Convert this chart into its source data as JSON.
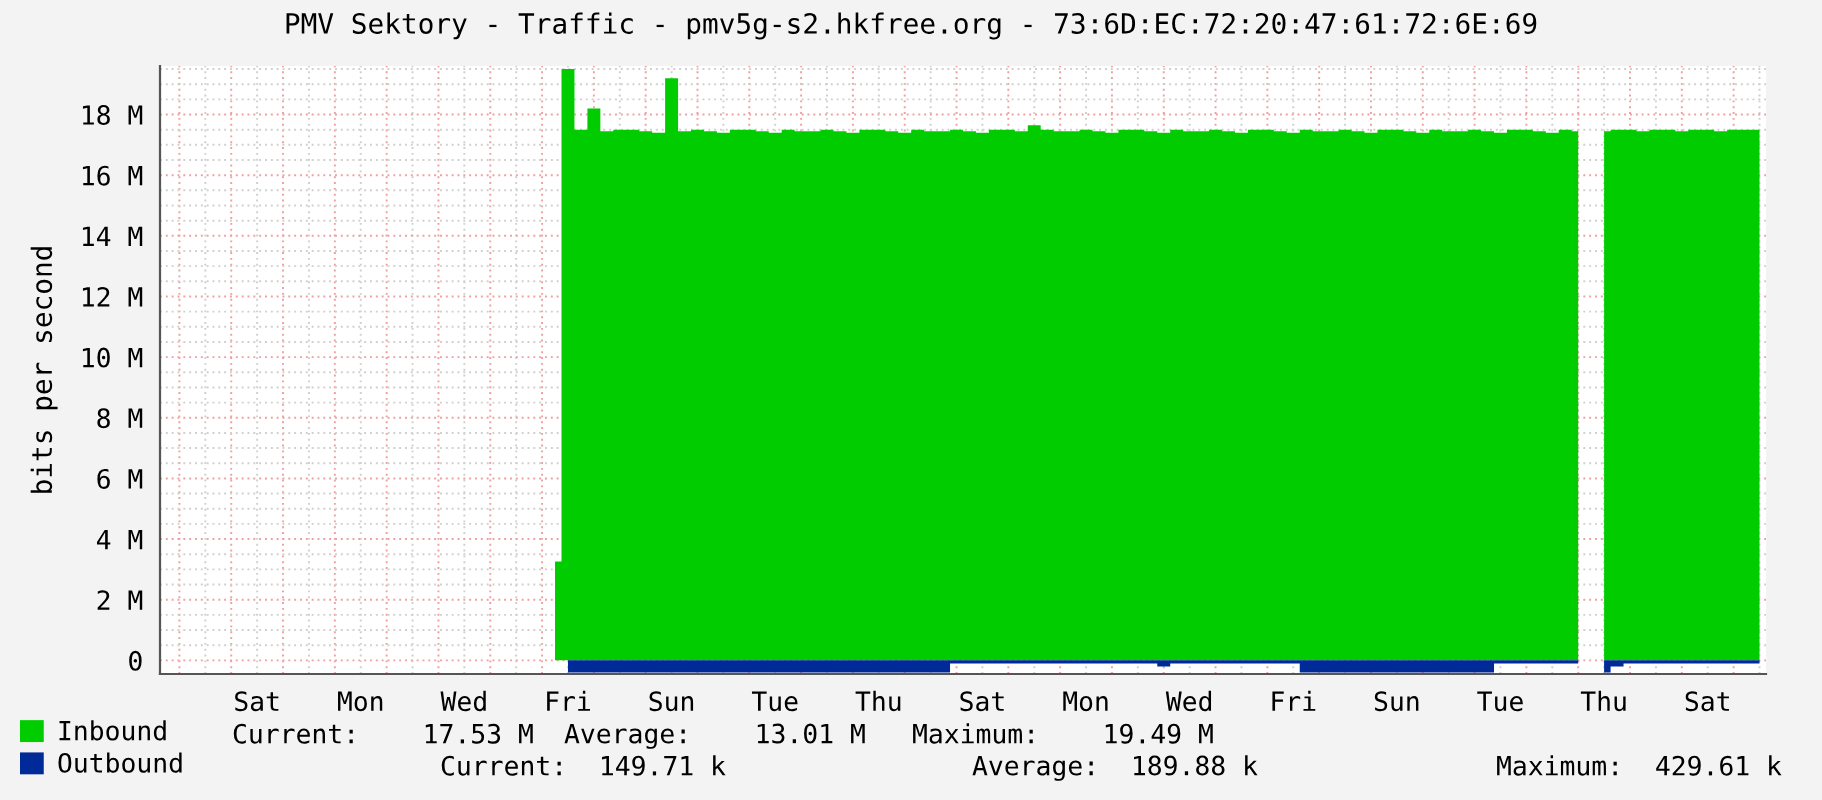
{
  "chart_data": {
    "type": "area",
    "title": "PMV Sektory - Traffic - pmv5g-s2.hkfree.org - 73:6D:EC:72:20:47:61:72:6E:69",
    "ylabel": "bits per second",
    "categories": [
      null,
      null,
      null,
      null,
      null,
      null,
      null,
      "Sat",
      null,
      null,
      null,
      null,
      null,
      null,
      null,
      "Mon",
      null,
      null,
      null,
      null,
      null,
      null,
      null,
      "Wed",
      null,
      null,
      null,
      null,
      null,
      null,
      null,
      "Fri",
      null,
      null,
      null,
      null,
      null,
      null,
      null,
      "Sun",
      null,
      null,
      null,
      null,
      null,
      null,
      null,
      "Tue",
      null,
      null,
      null,
      null,
      null,
      null,
      null,
      "Thu",
      null,
      null,
      null,
      null,
      null,
      null,
      null,
      "Sat",
      null,
      null,
      null,
      null,
      null,
      null,
      null,
      "Mon",
      null,
      null,
      null,
      null,
      null,
      null,
      null,
      "Wed",
      null,
      null,
      null,
      null,
      null,
      null,
      null,
      "Fri",
      null,
      null,
      null,
      null,
      null,
      null,
      null,
      "Sun",
      null,
      null,
      null,
      null,
      null,
      null,
      null,
      "Tue",
      null,
      null,
      null,
      null,
      null,
      null,
      null,
      "Thu",
      null,
      null,
      null,
      null,
      null,
      null,
      null,
      "Sat",
      null,
      null,
      null,
      null
    ],
    "ylim": [
      -0.45,
      19.6
    ],
    "yticks": [
      {
        "value": 0,
        "label": "0"
      },
      {
        "value": 0.5,
        "label": null
      },
      {
        "value": 1,
        "label": null
      },
      {
        "value": 1.5,
        "label": null
      },
      {
        "value": 2,
        "label": "2 M"
      },
      {
        "value": 2.5,
        "label": null
      },
      {
        "value": 3,
        "label": null
      },
      {
        "value": 3.5,
        "label": null
      },
      {
        "value": 4,
        "label": "4 M"
      },
      {
        "value": 4.5,
        "label": null
      },
      {
        "value": 5,
        "label": null
      },
      {
        "value": 5.5,
        "label": null
      },
      {
        "value": 6,
        "label": "6 M"
      },
      {
        "value": 6.5,
        "label": null
      },
      {
        "value": 7,
        "label": null
      },
      {
        "value": 7.5,
        "label": null
      },
      {
        "value": 8,
        "label": "8 M"
      },
      {
        "value": 8.5,
        "label": null
      },
      {
        "value": 9,
        "label": null
      },
      {
        "value": 9.5,
        "label": null
      },
      {
        "value": 10,
        "label": "10 M"
      },
      {
        "value": 10.5,
        "label": null
      },
      {
        "value": 11,
        "label": null
      },
      {
        "value": 11.5,
        "label": null
      },
      {
        "value": 12,
        "label": "12 M"
      },
      {
        "value": 12.5,
        "label": null
      },
      {
        "value": 13,
        "label": null
      },
      {
        "value": 13.5,
        "label": null
      },
      {
        "value": 14,
        "label": "14 M"
      },
      {
        "value": 14.5,
        "label": null
      },
      {
        "value": 15,
        "label": null
      },
      {
        "value": 15.5,
        "label": null
      },
      {
        "value": 16,
        "label": "16 M"
      },
      {
        "value": 16.5,
        "label": null
      },
      {
        "value": 17,
        "label": null
      },
      {
        "value": 17.5,
        "label": null
      },
      {
        "value": 18,
        "label": "18 M"
      },
      {
        "value": 18.5,
        "label": null
      },
      {
        "value": 19,
        "label": null
      },
      {
        "value": 19.5,
        "label": null
      }
    ],
    "grid": true,
    "legend": "bottom",
    "series": [
      {
        "name": "Inbound",
        "color": "#00cc00",
        "values": [
          null,
          null,
          null,
          null,
          null,
          null,
          null,
          null,
          null,
          null,
          null,
          null,
          null,
          null,
          null,
          null,
          null,
          null,
          null,
          null,
          null,
          null,
          null,
          null,
          null,
          null,
          null,
          null,
          null,
          null,
          3.26,
          19.5,
          17.5,
          18.2,
          17.45,
          17.5,
          17.5,
          17.45,
          17.4,
          19.2,
          17.45,
          17.5,
          17.45,
          17.4,
          17.5,
          17.5,
          17.45,
          17.4,
          17.5,
          17.45,
          17.45,
          17.5,
          17.45,
          17.4,
          17.5,
          17.5,
          17.45,
          17.4,
          17.5,
          17.45,
          17.45,
          17.5,
          17.45,
          17.4,
          17.5,
          17.5,
          17.45,
          17.65,
          17.5,
          17.45,
          17.45,
          17.5,
          17.45,
          17.4,
          17.5,
          17.5,
          17.45,
          17.4,
          17.5,
          17.45,
          17.45,
          17.5,
          17.45,
          17.4,
          17.5,
          17.5,
          17.45,
          17.4,
          17.5,
          17.45,
          17.45,
          17.5,
          17.45,
          17.4,
          17.5,
          17.5,
          17.45,
          17.4,
          17.5,
          17.45,
          17.45,
          17.5,
          17.45,
          17.4,
          17.5,
          17.5,
          17.45,
          17.4,
          17.5,
          17.45,
          null,
          17.45,
          17.5,
          17.5,
          17.45,
          17.5,
          17.5,
          17.45,
          17.5,
          17.5,
          17.45,
          17.5,
          17.5,
          17.5
        ]
      },
      {
        "name": "Outbound",
        "color": "#002a97",
        "values": [
          null,
          null,
          null,
          null,
          null,
          null,
          null,
          null,
          null,
          null,
          null,
          null,
          null,
          null,
          null,
          null,
          null,
          null,
          null,
          null,
          null,
          null,
          null,
          null,
          null,
          null,
          null,
          null,
          null,
          null,
          null,
          -0.4,
          -0.4,
          -0.4,
          -0.4,
          -0.4,
          -0.4,
          -0.4,
          -0.4,
          -0.4,
          -0.4,
          -0.4,
          -0.4,
          -0.4,
          -0.4,
          -0.4,
          -0.4,
          -0.4,
          -0.4,
          -0.4,
          -0.4,
          -0.4,
          -0.4,
          -0.4,
          -0.4,
          -0.4,
          -0.4,
          -0.4,
          -0.4,
          -0.4,
          -0.4,
          -0.1,
          -0.1,
          -0.1,
          -0.1,
          -0.1,
          -0.1,
          -0.1,
          -0.1,
          -0.1,
          -0.1,
          -0.1,
          -0.1,
          -0.1,
          -0.1,
          -0.1,
          -0.1,
          -0.2,
          -0.1,
          -0.1,
          -0.1,
          -0.1,
          -0.1,
          -0.1,
          -0.1,
          -0.1,
          -0.1,
          -0.1,
          -0.4,
          -0.4,
          -0.4,
          -0.4,
          -0.4,
          -0.4,
          -0.4,
          -0.4,
          -0.4,
          -0.4,
          -0.4,
          -0.4,
          -0.4,
          -0.4,
          -0.4,
          -0.1,
          -0.1,
          -0.1,
          -0.1,
          -0.1,
          -0.1,
          -0.1,
          null,
          -0.4,
          -0.2,
          -0.1,
          -0.1,
          -0.1,
          -0.1,
          -0.1,
          -0.1,
          -0.1,
          -0.1,
          -0.1,
          -0.1,
          -0.1
        ]
      }
    ],
    "annotations": [
      "Current:    17.53 M",
      "Average:    13.01 M",
      "Maximum:    19.49 M",
      "Current:  149.71 k",
      "Average:  189.88 k",
      "Maximum:  429.61 k"
    ]
  }
}
